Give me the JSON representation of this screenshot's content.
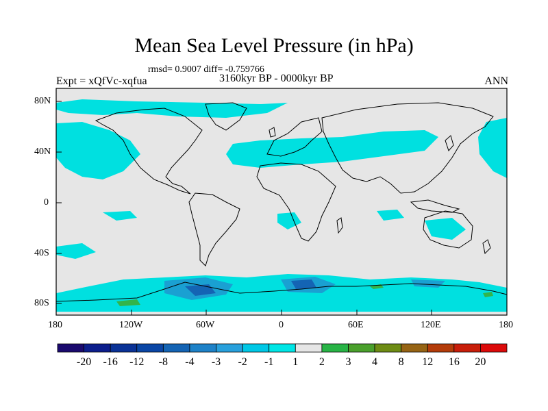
{
  "title": "Mean Sea Level Pressure (in hPa)",
  "stats": "rmsd= 0.9007 diff= -0.759766",
  "expt": "Expt = xQfVc-xqfua",
  "period": "3160kyr BP - 0000kyr BP",
  "season": "ANN",
  "colors": {
    "land_bg": "#e6e6e6",
    "neg_1": "#00e5e5",
    "neg_2": "#20c8dc",
    "neg_3": "#1aa0d2",
    "neg_4": "#1478c8",
    "pos_1": "#33cc66",
    "pos_2": "#4aa02c"
  },
  "map": {
    "lat_labels": [
      "80N",
      "40N",
      "0",
      "40S",
      "80S"
    ],
    "lon_labels": [
      "180",
      "120W",
      "60W",
      "0",
      "60E",
      "120E",
      "180"
    ]
  },
  "colorbar": {
    "labels": [
      "-20",
      "-16",
      "-12",
      "-8",
      "-4",
      "-3",
      "-2",
      "-1",
      "1",
      "2",
      "3",
      "4",
      "8",
      "12",
      "16",
      "20"
    ],
    "colors": [
      "#1a0a6e",
      "#0c1e8c",
      "#0a3296",
      "#0a46a5",
      "#1464b4",
      "#1e82c8",
      "#28a0dc",
      "#00c8e6",
      "#00e6e6",
      "#e6e6e6",
      "#28b446",
      "#4aa02c",
      "#6e8c14",
      "#966414",
      "#b43c0a",
      "#c81e0a",
      "#dc0a0a"
    ]
  }
}
